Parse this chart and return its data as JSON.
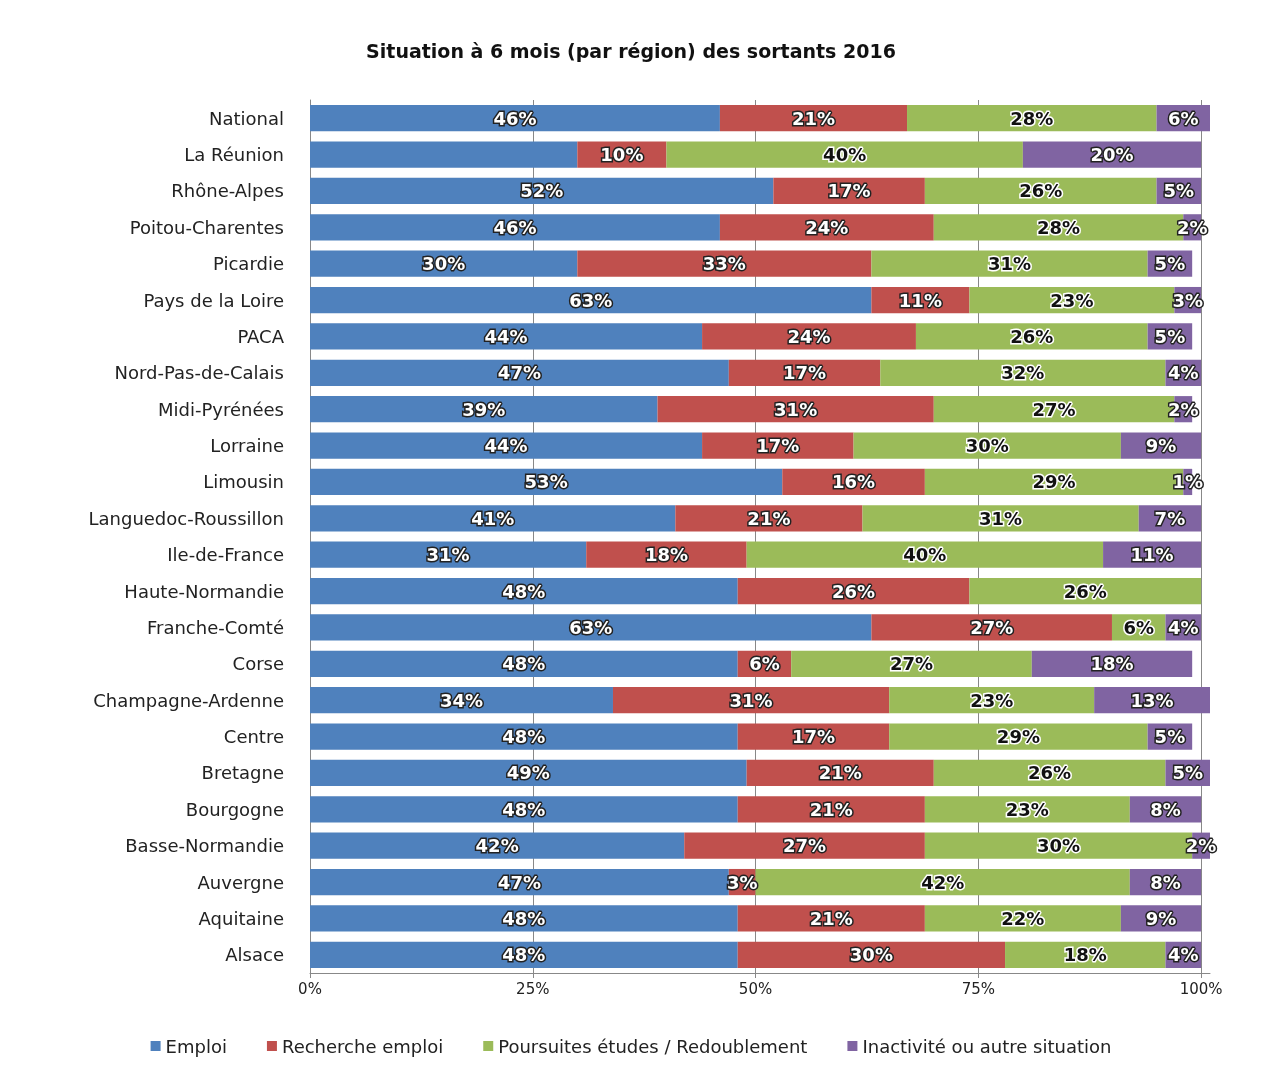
{
  "chart_data": {
    "type": "bar",
    "title": "Situation à 6 mois (par région) des sortants 2016",
    "orientation": "horizontal",
    "stacked": true,
    "grid": "x",
    "legend": "bottom",
    "categories": [
      "National",
      "La Réunion",
      "Rhône-Alpes",
      "Poitou-Charentes",
      "Picardie",
      "Pays de la Loire",
      "PACA",
      "Nord-Pas-de-Calais",
      "Midi-Pyrénées",
      "Lorraine",
      "Limousin",
      "Languedoc-Roussillon",
      "Ile-de-France",
      "Haute-Normandie",
      "Franche-Comté",
      "Corse",
      "Champagne-Ardenne",
      "Centre",
      "Bretagne",
      "Bourgogne",
      "Basse-Normandie",
      "Auvergne",
      "Aquitaine",
      "Alsace"
    ],
    "xlim": [
      0,
      101
    ],
    "xticks": [
      {
        "value": 0,
        "label": "0%"
      },
      {
        "value": 25,
        "label": "25%"
      },
      {
        "value": 50,
        "label": "50%"
      },
      {
        "value": 75,
        "label": "75%"
      },
      {
        "value": 100,
        "label": "100%"
      }
    ],
    "series": [
      {
        "name": "Emploi",
        "color": "#4f81bd",
        "values": [
          46,
          30,
          52,
          46,
          30,
          63,
          44,
          47,
          39,
          44,
          53,
          41,
          31,
          48,
          63,
          48,
          34,
          48,
          49,
          48,
          42,
          47,
          48,
          48
        ],
        "value_labels": [
          "46%",
          null,
          "52%",
          "46%",
          "30%",
          "63%",
          "44%",
          "47%",
          "39%",
          "44%",
          "53%",
          "41%",
          "31%",
          "48%",
          "63%",
          "48%",
          "34%",
          "48%",
          "49%",
          "48%",
          "42%",
          "47%",
          "48%",
          "48%"
        ]
      },
      {
        "name": "Recherche emploi",
        "color": "#c0504d",
        "values": [
          21,
          10,
          17,
          24,
          33,
          11,
          24,
          17,
          31,
          17,
          16,
          21,
          18,
          26,
          27,
          6,
          31,
          17,
          21,
          21,
          27,
          3,
          21,
          30
        ],
        "value_labels": [
          "21%",
          "10%",
          "17%",
          "24%",
          "33%",
          "11%",
          "24%",
          "17%",
          "31%",
          "17%",
          "16%",
          "21%",
          "18%",
          "26%",
          "27%",
          "6%",
          "31%",
          "17%",
          "21%",
          "21%",
          "27%",
          "3%",
          "21%",
          "30%"
        ]
      },
      {
        "name": "Poursuites études / Redoublement",
        "color": "#9bbb59",
        "values": [
          28,
          40,
          26,
          28,
          31,
          23,
          26,
          32,
          27,
          30,
          29,
          31,
          40,
          26,
          6,
          27,
          23,
          29,
          26,
          23,
          30,
          42,
          22,
          18
        ],
        "value_labels": [
          "28%",
          "40%",
          "26%",
          "28%",
          "31%",
          "23%",
          "26%",
          "32%",
          "27%",
          "30%",
          "29%",
          "31%",
          "40%",
          "26%",
          "6%",
          "27%",
          "23%",
          "29%",
          "26%",
          "23%",
          "30%",
          "42%",
          "22%",
          "18%"
        ]
      },
      {
        "name": "Inactivité ou autre situation",
        "color": "#8064a2",
        "values": [
          6,
          20,
          5,
          2,
          5,
          3,
          5,
          4,
          2,
          9,
          1,
          7,
          11,
          0,
          4,
          18,
          13,
          5,
          5,
          8,
          2,
          8,
          9,
          4
        ],
        "value_labels": [
          "6%",
          "20%",
          "5%",
          "2%",
          "5%",
          "3%",
          "5%",
          "4%",
          "2%",
          "9%",
          "1%",
          "7%",
          "11%",
          null,
          "4%",
          "18%",
          "13%",
          "5%",
          "5%",
          "8%",
          "2%",
          "8%",
          "9%",
          "4%"
        ]
      }
    ]
  }
}
